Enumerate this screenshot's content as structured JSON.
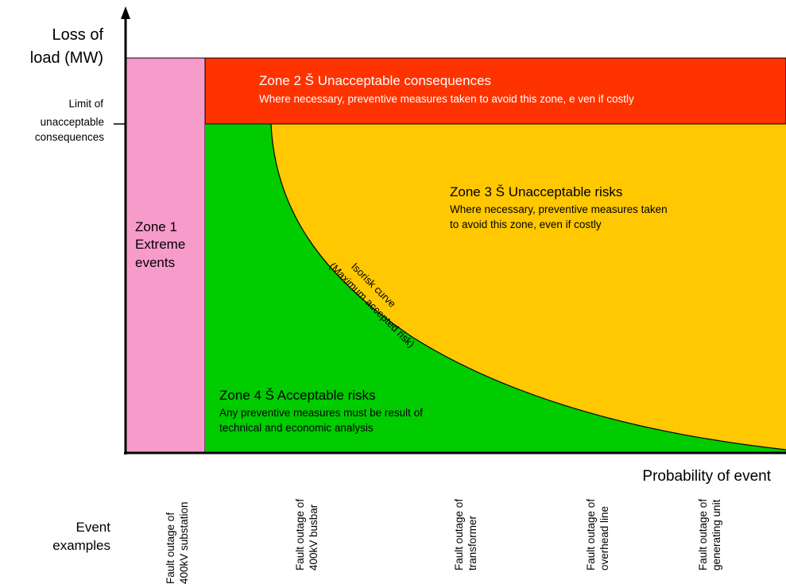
{
  "y_axis": {
    "label_line1": "Loss of",
    "label_line2": "load (MW)",
    "limit_line1": "Limit of",
    "limit_line2": "unacceptable",
    "limit_line3": "consequences"
  },
  "x_axis": {
    "label": "Probability of event"
  },
  "zones": {
    "zone1": {
      "line1": "Zone 1",
      "line2": "Extreme",
      "line3": "events",
      "color": "#f79bcb"
    },
    "zone2": {
      "title": "Zone 2 Š Unacceptable consequences",
      "desc": "Where necessary, preventive measures taken to avoid this zone, e ven if costly",
      "color": "#ff3300"
    },
    "zone3": {
      "title": "Zone 3 Š Unacceptable risks",
      "desc_line1": "Where necessary, preventive measures taken",
      "desc_line2": "to avoid this zone, even if costly",
      "color": "#ffc800"
    },
    "zone4": {
      "title": "Zone 4 Š Acceptable risks",
      "desc_line1": "Any preventive measures must be result of",
      "desc_line2": "technical and economic analysis",
      "color": "#00cc00"
    }
  },
  "isorisk": {
    "line1": "Isorisk curve",
    "line2": "(Maximum accepted risk)"
  },
  "events": {
    "label_line1": "Event",
    "label_line2": "examples",
    "items": [
      {
        "line1": "Fault outage of",
        "line2": "400kV substation"
      },
      {
        "line1": "Fault outage of",
        "line2": "400kV busbar"
      },
      {
        "line1": "Fault outage of",
        "line2": "transformer"
      },
      {
        "line1": "Fault outage of",
        "line2": "overhead line"
      },
      {
        "line1": "Fault outage of",
        "line2": "generating unit"
      }
    ]
  }
}
